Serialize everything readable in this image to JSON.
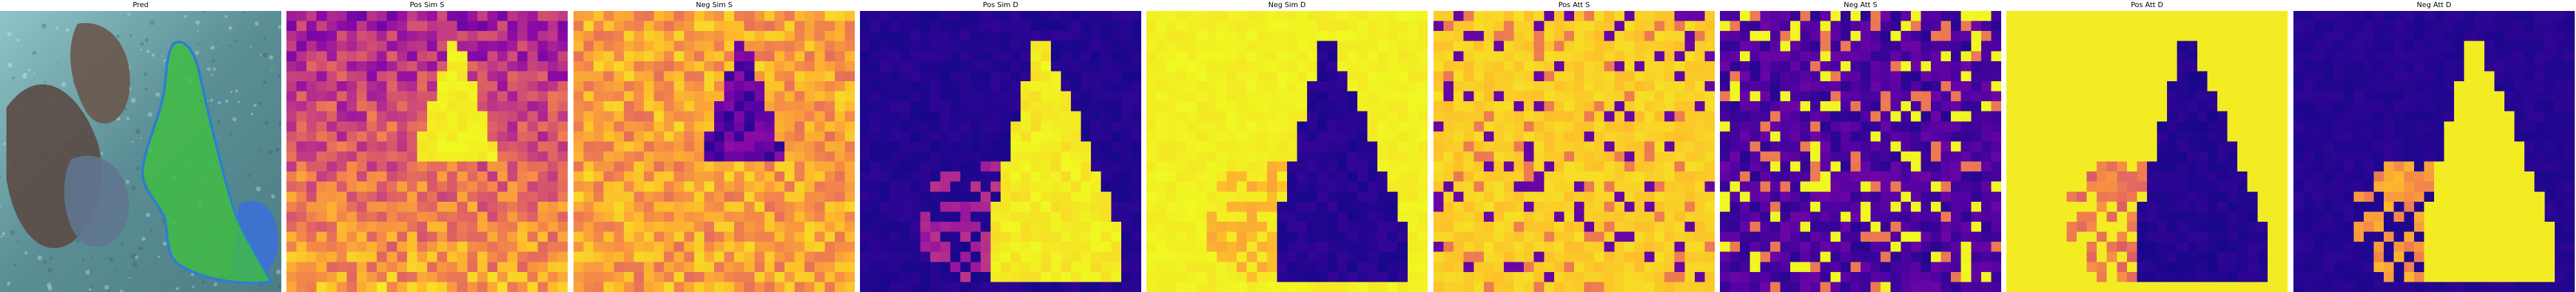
{
  "panels": [
    {
      "title": "Pred",
      "kind": "photo"
    },
    {
      "title": "Pos Sim S",
      "kind": "heatmap",
      "colormap": "plasma",
      "pattern": "pos_sim_s"
    },
    {
      "title": "Neg Sim S",
      "kind": "heatmap",
      "colormap": "plasma",
      "pattern": "neg_sim_s"
    },
    {
      "title": "Pos Sim D",
      "kind": "heatmap",
      "colormap": "plasma",
      "pattern": "pos_sim_d"
    },
    {
      "title": "Neg Sim D",
      "kind": "heatmap",
      "colormap": "plasma",
      "pattern": "neg_sim_d"
    },
    {
      "title": "Pos Att S",
      "kind": "heatmap",
      "colormap": "plasma",
      "pattern": "pos_att_s"
    },
    {
      "title": "Neg Att S",
      "kind": "heatmap",
      "colormap": "plasma",
      "pattern": "neg_att_s"
    },
    {
      "title": "Pos Att D",
      "kind": "heatmap",
      "colormap": "plasma",
      "pattern": "pos_att_d"
    },
    {
      "title": "Neg Att D",
      "kind": "heatmap",
      "colormap": "plasma",
      "pattern": "neg_att_d"
    }
  ],
  "colors": {
    "plasma_low": "#0d0887",
    "plasma_mid": "#cc4778",
    "plasma_high": "#f0f921",
    "mask_fill": "#3fbf3f",
    "mask_outline": "#2c7fd0",
    "water": "#5a8e94"
  }
}
